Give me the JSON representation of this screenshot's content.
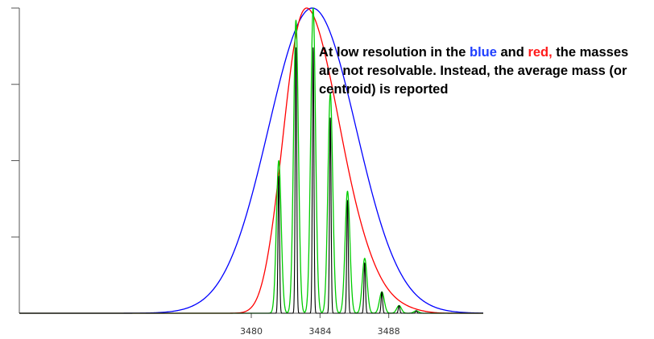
{
  "chart_data": {
    "type": "line",
    "title": "",
    "xlabel": "",
    "ylabel": "",
    "xlim": [
      3466.5,
      3493.5
    ],
    "ylim": [
      0,
      1.0
    ],
    "x_ticks": [
      3480,
      3484,
      3488
    ],
    "x_tick_labels": [
      "3480",
      "3484",
      "3488"
    ],
    "y_ticks": [
      0.25,
      0.5,
      0.75,
      1.0
    ],
    "grid": false,
    "legend": "none",
    "series": [
      {
        "color": "#0000ff",
        "style": "gaussian",
        "center": 3483.55,
        "sigma": 2.55,
        "amplitude": 1.0
      },
      {
        "color": "#ff0000",
        "style": "gaussian-mix",
        "center": 3482.9,
        "components": [
          {
            "x": 3481.6,
            "y": 0.3
          },
          {
            "x": 3482.6,
            "y": 0.85
          },
          {
            "x": 3483.6,
            "y": 0.8
          },
          {
            "x": 3484.6,
            "y": 0.62
          },
          {
            "x": 3485.6,
            "y": 0.36
          },
          {
            "x": 3486.6,
            "y": 0.18
          },
          {
            "x": 3487.6,
            "y": 0.07
          },
          {
            "x": 3488.6,
            "y": 0.025
          },
          {
            "x": 3489.6,
            "y": 0.008
          }
        ],
        "sigma": 0.72
      },
      {
        "color": "#00cc00",
        "style": "peaks",
        "sigma": 0.14,
        "peaks": [
          {
            "x": 3481.6,
            "y": 0.5
          },
          {
            "x": 3482.6,
            "y": 0.96
          },
          {
            "x": 3483.6,
            "y": 1.0
          },
          {
            "x": 3484.6,
            "y": 0.72
          },
          {
            "x": 3485.6,
            "y": 0.4
          },
          {
            "x": 3486.6,
            "y": 0.18
          },
          {
            "x": 3487.6,
            "y": 0.07
          },
          {
            "x": 3488.6,
            "y": 0.025
          },
          {
            "x": 3489.6,
            "y": 0.008
          }
        ]
      },
      {
        "color": "#000000",
        "style": "peaks",
        "sigma": 0.045,
        "peaks": [
          {
            "x": 3481.6,
            "y": 0.45
          },
          {
            "x": 3482.6,
            "y": 0.87
          },
          {
            "x": 3483.6,
            "y": 0.87
          },
          {
            "x": 3484.6,
            "y": 0.64
          },
          {
            "x": 3485.6,
            "y": 0.37
          },
          {
            "x": 3486.6,
            "y": 0.165
          },
          {
            "x": 3487.6,
            "y": 0.07
          },
          {
            "x": 3488.6,
            "y": 0.025
          },
          {
            "x": 3489.6,
            "y": 0.008
          }
        ]
      }
    ]
  },
  "annotation": {
    "prefix": "At low resolution in the ",
    "blue_word": "blue",
    "middle": " and ",
    "red_word": "red,",
    "suffix": "  the masses are not resolvable. Instead, the average mass (or centroid) is reported"
  }
}
